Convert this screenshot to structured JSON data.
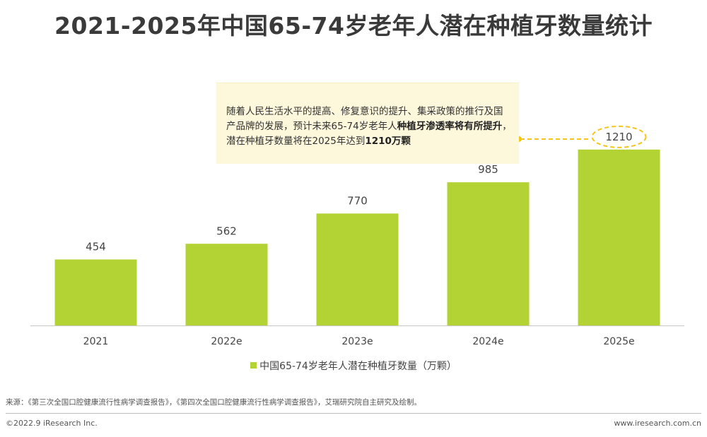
{
  "title": "2021-2025年中国65-74岁老年人潜在种植牙数量统计",
  "callout": {
    "t1": "随着人民生活水平的提高、修复意识的提升、集采政策的推行及国产品牌的发展，预计未来65-74岁老年人",
    "b1": "种植牙渗透率将有所提升",
    "t2": "，潜在种植牙数量将在2025年达到",
    "b2": "1210万颗"
  },
  "chart_data": {
    "type": "bar",
    "categories": [
      "2021",
      "2022e",
      "2023e",
      "2024e",
      "2025e"
    ],
    "values": [
      454,
      562,
      770,
      985,
      1210
    ],
    "series_name": "中国65-74岁老年人潜在种植牙数量（万颗）",
    "ylim": [
      0,
      1350
    ],
    "color": "#b3d335",
    "highlight_category": "2025e",
    "highlight_color": "#f5c518"
  },
  "source": "来源：《第三次全国口腔健康流行性病学调查报告》，《第四次全国口腔健康流行性病学调查报告》，艾瑞研究院自主研究及绘制。",
  "copyright": "©2022.9 iResearch Inc.",
  "website": "www.iresearch.com.cn"
}
